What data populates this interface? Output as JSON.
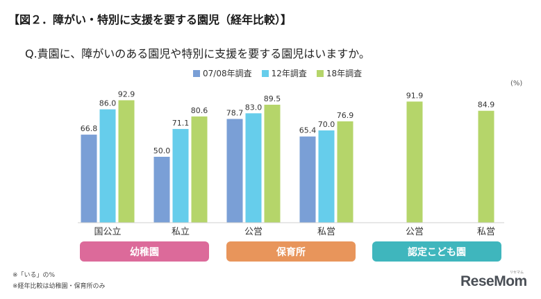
{
  "title": "【図２．障がい・特別に支援を要する園児（経年比較）】",
  "question": "Q.貴園に、障がいのある園児や特別に支援を要する園児はいますか。",
  "unit": "(%)",
  "footnotes": [
    "※「いる」の%",
    "※経年比較は幼稚園・保育所のみ"
  ],
  "logo": {
    "text": "ReseMom",
    "sub": "リセマム"
  },
  "colors": {
    "series": [
      "#7a9fd6",
      "#66cdeb",
      "#b5d56a"
    ],
    "groups": [
      "#dc6a9a",
      "#e8955b",
      "#3fb6bd"
    ]
  },
  "groups": [
    {
      "label": "幼稚園"
    },
    {
      "label": "保育所"
    },
    {
      "label": "認定こども園"
    }
  ],
  "chart_data": {
    "type": "bar",
    "categories": [
      "国公立",
      "私立",
      "公営",
      "私営",
      "公営",
      "私営"
    ],
    "series": [
      {
        "name": "07/08年調査",
        "values": [
          66.8,
          50.0,
          78.7,
          65.4,
          null,
          null
        ]
      },
      {
        "name": "12年調査",
        "values": [
          86.0,
          71.1,
          83.0,
          70.0,
          null,
          null
        ]
      },
      {
        "name": "18年調査",
        "values": [
          92.9,
          80.6,
          89.5,
          76.9,
          91.9,
          84.9
        ]
      }
    ],
    "value_labels": [
      [
        "66.8",
        "50.0",
        "78.7",
        "65.4",
        "",
        ""
      ],
      [
        "86.0",
        "71.1",
        "83.0",
        "70.0",
        "",
        ""
      ],
      [
        "92.9",
        "80.6",
        "89.5",
        "76.9",
        "91.9",
        "84.9"
      ]
    ],
    "ylim": [
      0,
      100
    ],
    "legend_position": "top",
    "grid": false
  }
}
